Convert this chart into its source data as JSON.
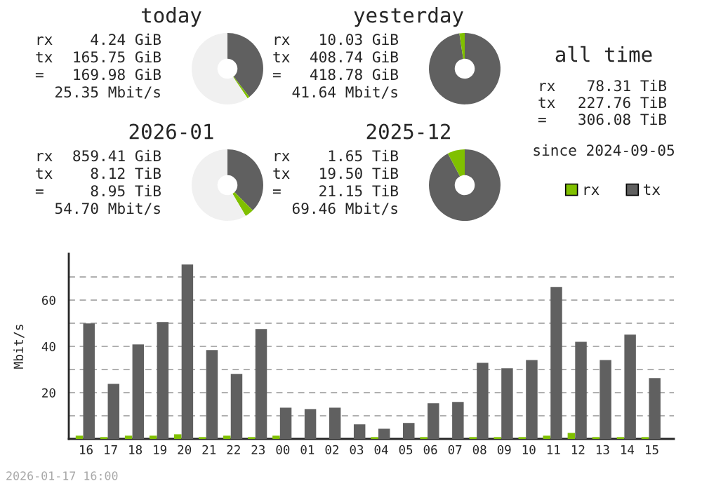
{
  "chart_data": [
    {
      "type": "donut",
      "title": "today",
      "categories": [
        "tx",
        "rx",
        null
      ],
      "values": [
        39.5,
        1.0,
        59.5
      ],
      "colors": [
        "#606060",
        "#80c000",
        "#f0f0f0"
      ],
      "legend": "right",
      "annotations": [
        "rx 4.24 GiB",
        "tx 165.75 GiB",
        "= 169.98 GiB",
        "25.35 Mbit/s"
      ]
    },
    {
      "type": "donut",
      "title": "yesterday",
      "categories": [
        null,
        null,
        null
      ],
      "values": [
        97.6,
        2.4,
        0
      ],
      "colors": [
        "#606060",
        "#80c000",
        "#f0f0f0"
      ],
      "annotations": [
        "rx 10.03 GiB",
        "tx 408.74 GiB",
        "= 418.78 GiB",
        "41.64 Mbit/s"
      ]
    },
    {
      "type": "donut",
      "title": "2026-01",
      "categories": [
        null,
        null,
        null
      ],
      "values": [
        37.5,
        4.0,
        58.5
      ],
      "colors": [
        "#606060",
        "#80c000",
        "#f0f0f0"
      ],
      "annotations": [
        "rx 859.41 GiB",
        "tx 8.12 TiB",
        "= 8.95 TiB",
        "54.70 Mbit/s"
      ]
    },
    {
      "type": "donut",
      "title": "2025-12",
      "categories": [
        null,
        null,
        null
      ],
      "values": [
        92.2,
        7.8,
        0
      ],
      "colors": [
        "#606060",
        "#80c000",
        "#f0f0f0"
      ],
      "annotations": [
        "rx 1.65 TiB",
        "tx 19.50 TiB",
        "= 21.15 TiB",
        "69.46 Mbit/s"
      ]
    },
    {
      "type": "other",
      "title": "all time",
      "annotations": [
        "rx 78.31 TiB",
        "tx 227.76 TiB",
        "= 306.08 TiB",
        "since 2024-09-05"
      ]
    },
    {
      "type": "bar",
      "ylabel": "Mbit/s",
      "categories": [
        "16",
        "17",
        "18",
        "19",
        "20",
        "21",
        "22",
        "23",
        "00",
        "01",
        "02",
        "03",
        "04",
        "05",
        "06",
        "07",
        "08",
        "09",
        "10",
        "11",
        "12",
        "13",
        "14",
        "15"
      ],
      "series": [
        {
          "color": "#80c000",
          "values": [
            1.4,
            0.8,
            1.4,
            1.4,
            2.0,
            0.8,
            1.4,
            0.8,
            1.4,
            0,
            0,
            0,
            0.8,
            0,
            0.8,
            0,
            0.8,
            0.8,
            0.8,
            1.4,
            2.6,
            0.8,
            0.8,
            0.8
          ]
        },
        {
          "color": "#606060",
          "values": [
            49.9,
            23.8,
            40.8,
            50.5,
            75.4,
            38.4,
            28.1,
            47.5,
            13.5,
            12.9,
            13.5,
            6.3,
            4.4,
            6.9,
            15.4,
            16.0,
            32.9,
            30.5,
            34.1,
            65.7,
            42.0,
            34.1,
            45.1,
            26.3
          ]
        }
      ],
      "ylim": [
        0,
        80
      ],
      "yticks": [
        {
          "value": 10,
          "label": null
        },
        20,
        {
          "value": 30,
          "label": null
        },
        40,
        {
          "value": 50,
          "label": null
        },
        60,
        {
          "value": 70,
          "label": null
        }
      ],
      "grid": "y",
      "annotations": [
        "2026-01-17 16:00"
      ]
    }
  ]
}
